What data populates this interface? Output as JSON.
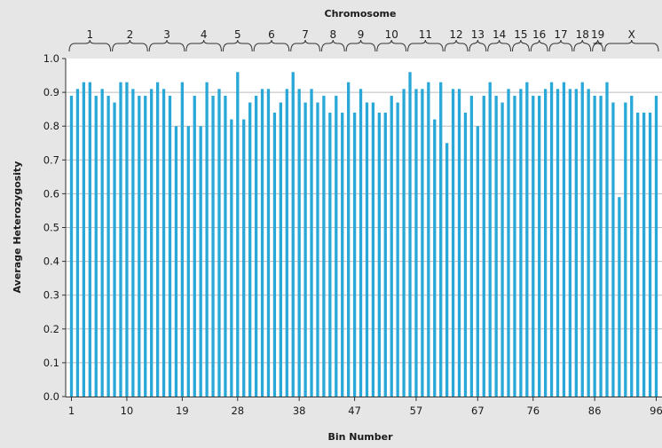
{
  "chart_data": {
    "type": "bar",
    "title": "Chromosome",
    "xlabel": "Bin Number",
    "ylabel": "Average Heterozygosity",
    "ylim": [
      0,
      1.0
    ],
    "yticks": [
      "0.0",
      "0.1",
      "0.2",
      "0.3",
      "0.4",
      "0.5",
      "0.6",
      "0.7",
      "0.8",
      "0.9",
      "1.0"
    ],
    "xticks": [
      "1",
      "10",
      "19",
      "28",
      "38",
      "47",
      "57",
      "67",
      "76",
      "86",
      "96"
    ],
    "grid": "horizontal",
    "colors": {
      "bar": "#29a8d8",
      "plot_bg": "#ffffff",
      "page_bg": "#e6e6e6",
      "grid": "#bdbdbd"
    },
    "x": [
      1,
      2,
      3,
      4,
      5,
      6,
      7,
      8,
      9,
      10,
      11,
      12,
      13,
      14,
      15,
      16,
      17,
      18,
      19,
      20,
      21,
      22,
      23,
      24,
      25,
      26,
      27,
      28,
      29,
      30,
      31,
      32,
      33,
      34,
      35,
      36,
      37,
      38,
      39,
      40,
      41,
      42,
      43,
      44,
      45,
      46,
      47,
      48,
      49,
      50,
      51,
      52,
      53,
      54,
      55,
      56,
      57,
      58,
      59,
      60,
      61,
      62,
      63,
      64,
      65,
      66,
      67,
      68,
      69,
      70,
      71,
      72,
      73,
      74,
      75,
      76,
      77,
      78,
      79,
      80,
      81,
      82,
      83,
      84,
      85,
      86,
      87,
      88,
      89,
      90,
      91,
      92,
      93,
      94,
      95,
      96
    ],
    "values": [
      0.89,
      0.91,
      0.93,
      0.93,
      0.89,
      0.91,
      0.89,
      0.87,
      0.93,
      0.93,
      0.91,
      0.89,
      0.89,
      0.91,
      0.93,
      0.91,
      0.89,
      0.8,
      0.93,
      0.8,
      0.89,
      0.8,
      0.93,
      0.89,
      0.91,
      0.89,
      0.82,
      0.96,
      0.82,
      0.87,
      0.89,
      0.91,
      0.91,
      0.84,
      0.87,
      0.91,
      0.96,
      0.91,
      0.87,
      0.91,
      0.87,
      0.89,
      0.84,
      0.89,
      0.84,
      0.93,
      0.84,
      0.91,
      0.87,
      0.87,
      0.84,
      0.84,
      0.89,
      0.87,
      0.91,
      0.96,
      0.91,
      0.91,
      0.93,
      0.82,
      0.93,
      0.75,
      0.91,
      0.91,
      0.84,
      0.89,
      0.8,
      0.89,
      0.93,
      0.89,
      0.87,
      0.91,
      0.89,
      0.91,
      0.93,
      0.89,
      0.89,
      0.91,
      0.93,
      0.91,
      0.93,
      0.91,
      0.91,
      0.93,
      0.91,
      0.89,
      0.89,
      0.93,
      0.87,
      0.59,
      0.87,
      0.89,
      0.84,
      0.84,
      0.84,
      0.89
    ],
    "chromosomes": [
      {
        "label": "1",
        "start": 1,
        "end": 7
      },
      {
        "label": "2",
        "start": 8,
        "end": 13
      },
      {
        "label": "3",
        "start": 14,
        "end": 19
      },
      {
        "label": "4",
        "start": 20,
        "end": 25
      },
      {
        "label": "5",
        "start": 26,
        "end": 30
      },
      {
        "label": "6",
        "start": 31,
        "end": 36
      },
      {
        "label": "7",
        "start": 37,
        "end": 41
      },
      {
        "label": "8",
        "start": 42,
        "end": 45
      },
      {
        "label": "9",
        "start": 46,
        "end": 50
      },
      {
        "label": "10",
        "start": 51,
        "end": 55
      },
      {
        "label": "11",
        "start": 56,
        "end": 61
      },
      {
        "label": "12",
        "start": 62,
        "end": 65
      },
      {
        "label": "13",
        "start": 66,
        "end": 68
      },
      {
        "label": "14",
        "start": 69,
        "end": 72
      },
      {
        "label": "15",
        "start": 73,
        "end": 75
      },
      {
        "label": "16",
        "start": 76,
        "end": 78
      },
      {
        "label": "17",
        "start": 79,
        "end": 82
      },
      {
        "label": "18",
        "start": 83,
        "end": 85
      },
      {
        "label": "19",
        "start": 86,
        "end": 87
      },
      {
        "label": "X",
        "start": 88,
        "end": 96
      }
    ]
  }
}
